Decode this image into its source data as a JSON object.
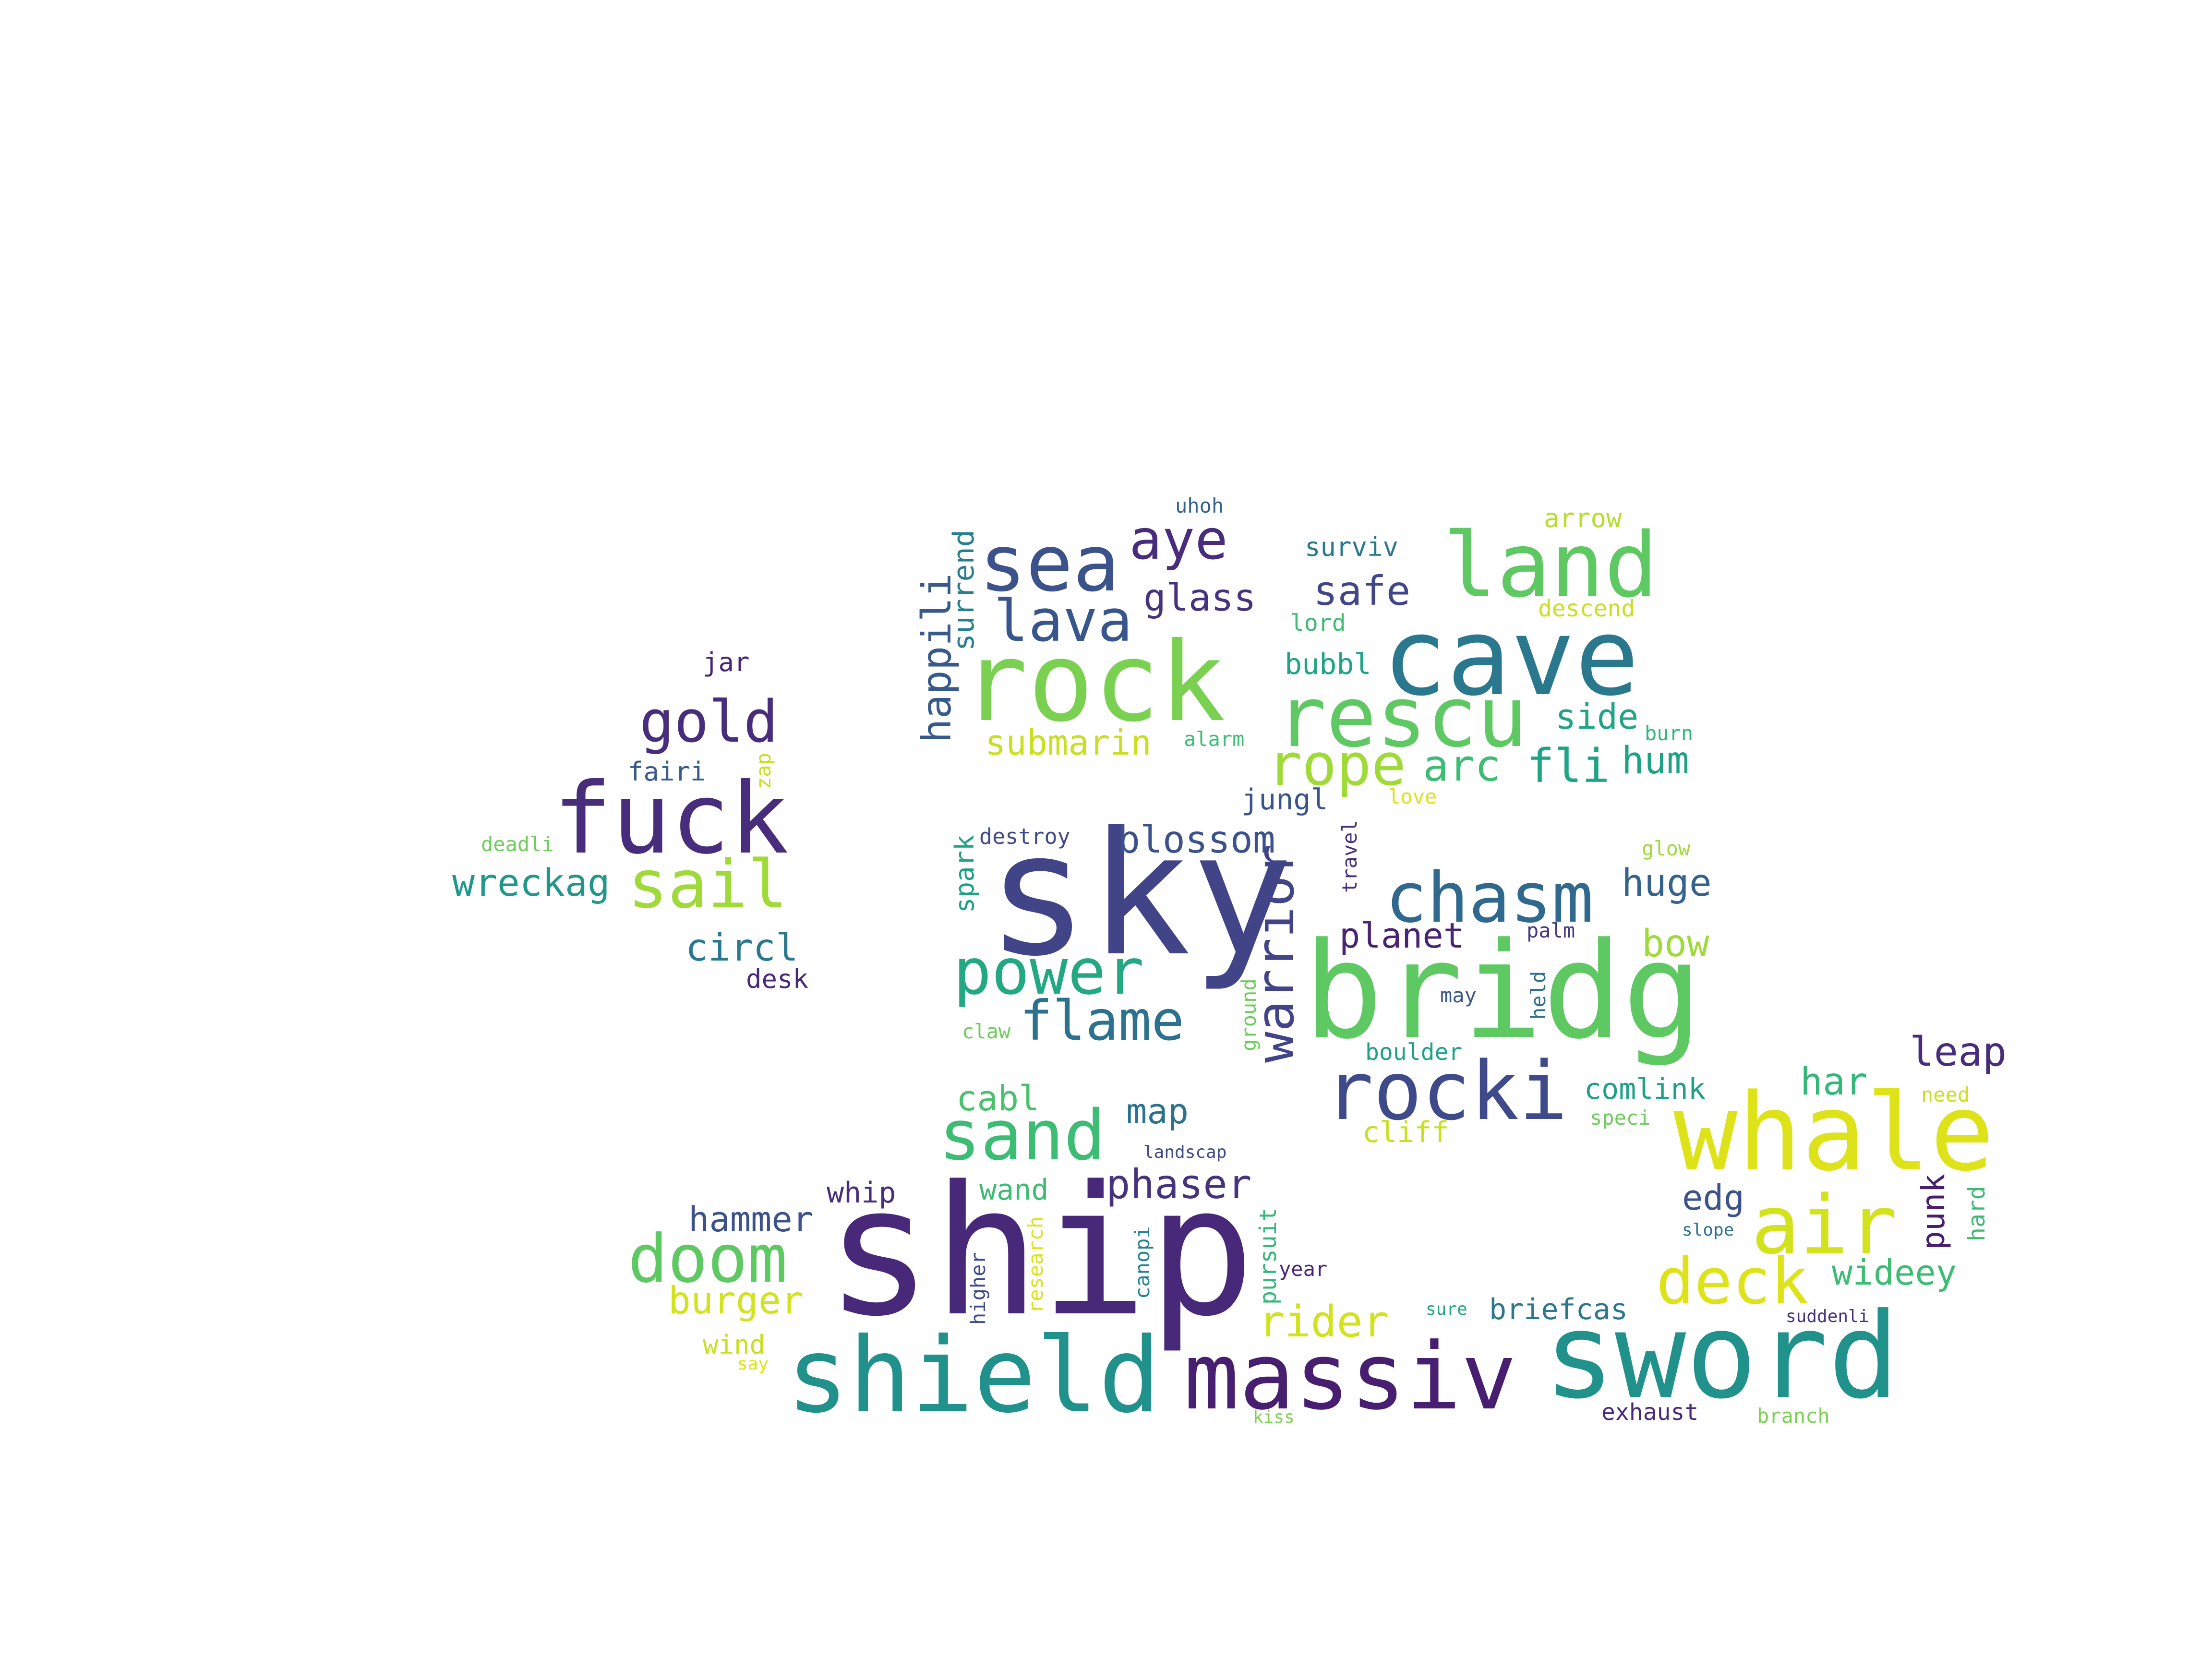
{
  "words": [
    {
      "text": "ship",
      "color": "#482878"
    },
    {
      "text": "sky",
      "color": "#414487"
    },
    {
      "text": "bridg",
      "color": "#5ec962"
    },
    {
      "text": "rock",
      "color": "#7ad151"
    },
    {
      "text": "cave",
      "color": "#2a788e"
    },
    {
      "text": "rescu",
      "color": "#5ec962"
    },
    {
      "text": "whale",
      "color": "#dde318"
    },
    {
      "text": "sword",
      "color": "#21918c"
    },
    {
      "text": "shield",
      "color": "#21918c"
    },
    {
      "text": "massiv",
      "color": "#481f70"
    },
    {
      "text": "fuck",
      "color": "#472d7b"
    },
    {
      "text": "land",
      "color": "#5ec962"
    },
    {
      "text": "sea",
      "color": "#3b528b"
    },
    {
      "text": "rocki",
      "color": "#3e4a89"
    },
    {
      "text": "air",
      "color": "#d2e21b"
    },
    {
      "text": "chasm",
      "color": "#31688e"
    },
    {
      "text": "power",
      "color": "#23a884"
    },
    {
      "text": "sand",
      "color": "#3dbc74"
    },
    {
      "text": "doom",
      "color": "#5ec962"
    },
    {
      "text": "deck",
      "color": "#dde318"
    },
    {
      "text": "sail",
      "color": "#a0da39"
    },
    {
      "text": "gold",
      "color": "#472d7b"
    },
    {
      "text": "lava",
      "color": "#39568c"
    },
    {
      "text": "aye",
      "color": "#472d7b"
    },
    {
      "text": "flame",
      "color": "#2c728e"
    },
    {
      "text": "rope",
      "color": "#a0da39"
    },
    {
      "text": "arc",
      "color": "#3dbc74"
    },
    {
      "text": "fli",
      "color": "#20a486"
    },
    {
      "text": "blossom",
      "color": "#3b528b"
    },
    {
      "text": "warrior",
      "color": "#414487"
    },
    {
      "text": "safe",
      "color": "#404688"
    },
    {
      "text": "glass",
      "color": "#46337e"
    },
    {
      "text": "happili",
      "color": "#38598c"
    },
    {
      "text": "surrend",
      "color": "#27808e"
    },
    {
      "text": "submarin",
      "color": "#c8e020"
    },
    {
      "text": "wreckag",
      "color": "#1f988b"
    },
    {
      "text": "circl",
      "color": "#2a788e"
    },
    {
      "text": "leap",
      "color": "#472d7b"
    },
    {
      "text": "hum",
      "color": "#1fa187"
    },
    {
      "text": "huge",
      "color": "#33638d"
    },
    {
      "text": "side",
      "color": "#20a386"
    },
    {
      "text": "planet",
      "color": "#482475"
    },
    {
      "text": "bow",
      "color": "#a0da39"
    },
    {
      "text": "har",
      "color": "#35b779"
    },
    {
      "text": "phaser",
      "color": "#46337e"
    },
    {
      "text": "hammer",
      "color": "#3b528b"
    },
    {
      "text": "burger",
      "color": "#d2e21b"
    },
    {
      "text": "wideey",
      "color": "#3dbc74"
    },
    {
      "text": "rider",
      "color": "#d2e21b"
    },
    {
      "text": "cabl",
      "color": "#4ac16d"
    },
    {
      "text": "map",
      "color": "#2c728e"
    },
    {
      "text": "comlink",
      "color": "#1fa187"
    },
    {
      "text": "edg",
      "color": "#3b528b"
    },
    {
      "text": "punk",
      "color": "#481f70"
    },
    {
      "text": "briefcas",
      "color": "#2a788e"
    },
    {
      "text": "whip",
      "color": "#472d7b"
    },
    {
      "text": "wand",
      "color": "#3dbc74"
    },
    {
      "text": "cliff",
      "color": "#c8e020"
    },
    {
      "text": "jungl",
      "color": "#39568c"
    },
    {
      "text": "bubbl",
      "color": "#20a386"
    },
    {
      "text": "surviv",
      "color": "#2a788e"
    },
    {
      "text": "arrow",
      "color": "#b5de2b"
    },
    {
      "text": "lord",
      "color": "#3dbc74"
    },
    {
      "text": "descend",
      "color": "#c8e020"
    },
    {
      "text": "uhoh",
      "color": "#33638d"
    },
    {
      "text": "jar",
      "color": "#482475"
    },
    {
      "text": "fairi",
      "color": "#38598c"
    },
    {
      "text": "zap",
      "color": "#c8e020"
    },
    {
      "text": "deadli",
      "color": "#6ccd5a"
    },
    {
      "text": "desk",
      "color": "#482878"
    },
    {
      "text": "spark",
      "color": "#1fa187"
    },
    {
      "text": "destroy",
      "color": "#3e4a89"
    },
    {
      "text": "alarm",
      "color": "#3dbc74"
    },
    {
      "text": "love",
      "color": "#dde318"
    },
    {
      "text": "travel",
      "color": "#46337e"
    },
    {
      "text": "burn",
      "color": "#35b779"
    },
    {
      "text": "glow",
      "color": "#a0da39"
    },
    {
      "text": "palm",
      "color": "#453781"
    },
    {
      "text": "may",
      "color": "#39568c"
    },
    {
      "text": "held",
      "color": "#2d708e"
    },
    {
      "text": "ground",
      "color": "#6ccd5a"
    },
    {
      "text": "claw",
      "color": "#6ccd5a"
    },
    {
      "text": "boulder",
      "color": "#1fa187"
    },
    {
      "text": "need",
      "color": "#c8e020"
    },
    {
      "text": "speci",
      "color": "#6ccd5a"
    },
    {
      "text": "hard",
      "color": "#3dbc74"
    },
    {
      "text": "slope",
      "color": "#2d708e"
    },
    {
      "text": "year",
      "color": "#482475"
    },
    {
      "text": "canopi",
      "color": "#26828e"
    },
    {
      "text": "pursuit",
      "color": "#35b779"
    },
    {
      "text": "research",
      "color": "#dde318"
    },
    {
      "text": "higher",
      "color": "#3e4a89"
    },
    {
      "text": "landscap",
      "color": "#3e4a89"
    },
    {
      "text": "sure",
      "color": "#20a486"
    },
    {
      "text": "suddenli",
      "color": "#46337e"
    },
    {
      "text": "wind",
      "color": "#c8e020"
    },
    {
      "text": "say",
      "color": "#dde318"
    },
    {
      "text": "kiss",
      "color": "#7ad151"
    },
    {
      "text": "exhaust",
      "color": "#482878"
    },
    {
      "text": "branch",
      "color": "#7ad151"
    }
  ]
}
